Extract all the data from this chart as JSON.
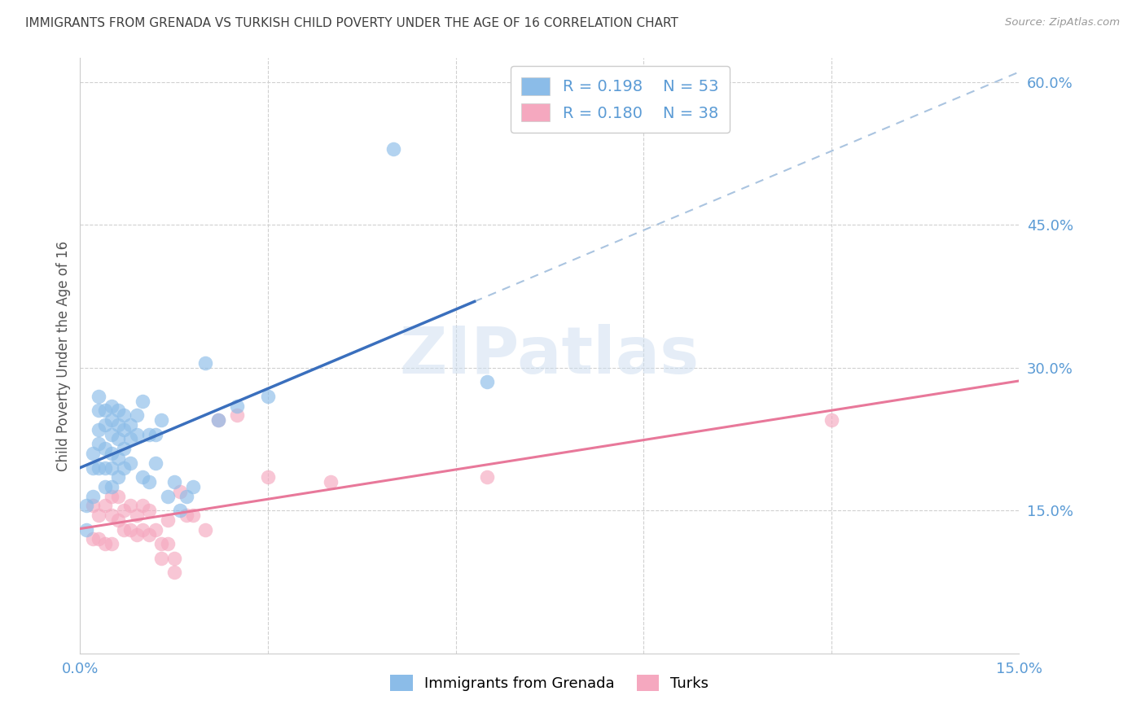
{
  "title": "IMMIGRANTS FROM GRENADA VS TURKISH CHILD POVERTY UNDER THE AGE OF 16 CORRELATION CHART",
  "source": "Source: ZipAtlas.com",
  "ylabel": "Child Poverty Under the Age of 16",
  "xlim": [
    0.0,
    0.15
  ],
  "ylim": [
    0.0,
    0.625
  ],
  "grenada_x": [
    0.001,
    0.001,
    0.002,
    0.002,
    0.002,
    0.003,
    0.003,
    0.003,
    0.003,
    0.003,
    0.004,
    0.004,
    0.004,
    0.004,
    0.004,
    0.005,
    0.005,
    0.005,
    0.005,
    0.005,
    0.005,
    0.006,
    0.006,
    0.006,
    0.006,
    0.006,
    0.007,
    0.007,
    0.007,
    0.007,
    0.008,
    0.008,
    0.008,
    0.009,
    0.009,
    0.01,
    0.01,
    0.011,
    0.011,
    0.012,
    0.012,
    0.013,
    0.014,
    0.015,
    0.016,
    0.017,
    0.018,
    0.02,
    0.022,
    0.025,
    0.03,
    0.05,
    0.065
  ],
  "grenada_y": [
    0.155,
    0.13,
    0.21,
    0.195,
    0.165,
    0.27,
    0.255,
    0.235,
    0.22,
    0.195,
    0.255,
    0.24,
    0.215,
    0.195,
    0.175,
    0.26,
    0.245,
    0.23,
    0.21,
    0.195,
    0.175,
    0.255,
    0.24,
    0.225,
    0.205,
    0.185,
    0.25,
    0.235,
    0.215,
    0.195,
    0.24,
    0.225,
    0.2,
    0.25,
    0.23,
    0.265,
    0.185,
    0.23,
    0.18,
    0.23,
    0.2,
    0.245,
    0.165,
    0.18,
    0.15,
    0.165,
    0.175,
    0.305,
    0.245,
    0.26,
    0.27,
    0.53,
    0.285
  ],
  "turks_x": [
    0.002,
    0.002,
    0.003,
    0.003,
    0.004,
    0.004,
    0.005,
    0.005,
    0.005,
    0.006,
    0.006,
    0.007,
    0.007,
    0.008,
    0.008,
    0.009,
    0.009,
    0.01,
    0.01,
    0.011,
    0.011,
    0.012,
    0.013,
    0.013,
    0.014,
    0.014,
    0.015,
    0.015,
    0.016,
    0.017,
    0.018,
    0.02,
    0.022,
    0.025,
    0.03,
    0.04,
    0.065,
    0.12
  ],
  "turks_y": [
    0.155,
    0.12,
    0.145,
    0.12,
    0.155,
    0.115,
    0.165,
    0.145,
    0.115,
    0.165,
    0.14,
    0.15,
    0.13,
    0.155,
    0.13,
    0.145,
    0.125,
    0.155,
    0.13,
    0.15,
    0.125,
    0.13,
    0.115,
    0.1,
    0.14,
    0.115,
    0.1,
    0.085,
    0.17,
    0.145,
    0.145,
    0.13,
    0.245,
    0.25,
    0.185,
    0.18,
    0.185,
    0.245
  ],
  "grenada_line_color": "#3a6fbd",
  "grenada_dash_color": "#aac4e0",
  "turks_line_color": "#e8789a",
  "dot_blue": "#8bbce8",
  "dot_pink": "#f5a8bf",
  "background_color": "#ffffff",
  "grid_color": "#d0d0d0",
  "axis_label_color": "#5b9bd5",
  "title_color": "#404040",
  "watermark": "ZIPatlas",
  "grenada_R": "0.198",
  "grenada_N": "53",
  "turks_R": "0.180",
  "turks_N": "38",
  "solid_line_x_end": 0.063
}
